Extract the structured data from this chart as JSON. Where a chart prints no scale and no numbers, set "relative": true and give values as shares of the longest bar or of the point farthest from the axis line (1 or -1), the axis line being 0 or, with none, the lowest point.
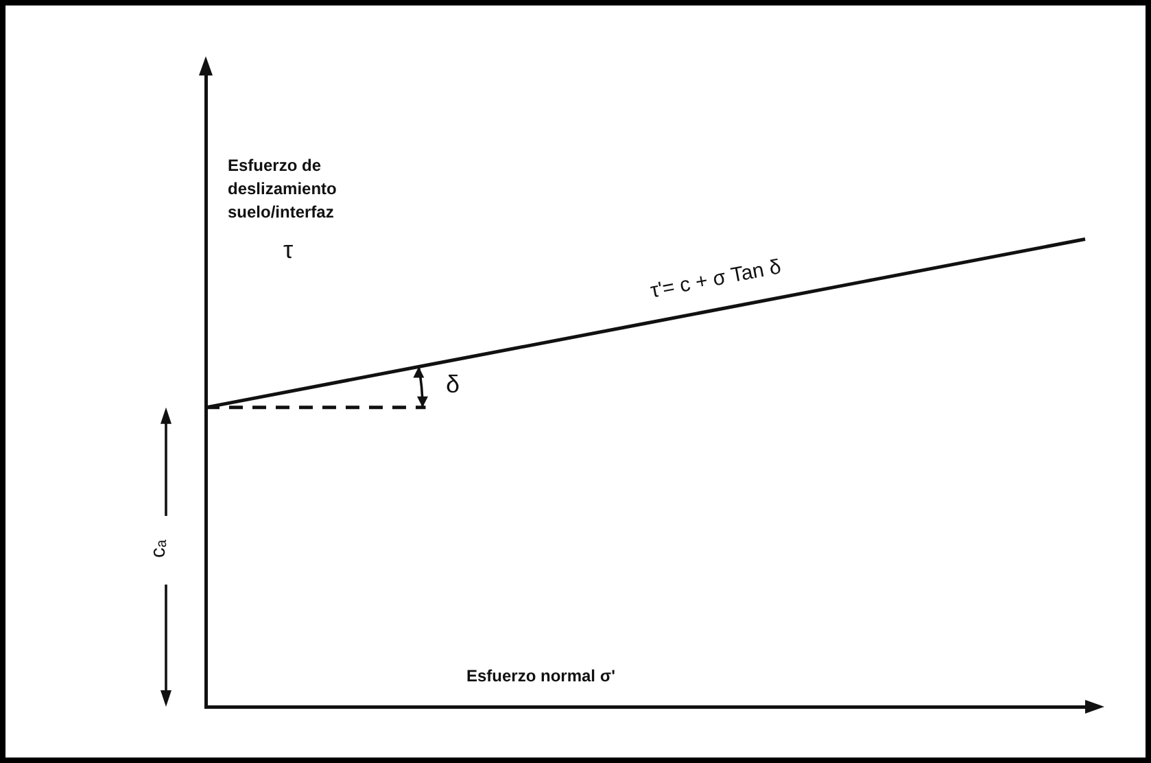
{
  "chart_data": {
    "type": "line",
    "relative": true,
    "xlabel": "Esfuerzo normal σ'",
    "ylabel": "Esfuerzo de deslizamiento suelo/interfaz",
    "categories": [
      null,
      null,
      null,
      null,
      null
    ],
    "grid": false,
    "legend": false,
    "marker": "none",
    "series": [
      {
        "color": "#111111",
        "values": [
          0.64,
          0.73,
          0.82,
          0.91,
          1.0
        ],
        "line_style": "solid"
      },
      {
        "color": "#111111",
        "values": [
          0.64,
          0.64,
          null,
          null,
          null
        ],
        "line_style": "dashed"
      }
    ],
    "annotations": [
      "τ'= c + σ Tan δ",
      "δ",
      "cₐ",
      "τ"
    ]
  }
}
